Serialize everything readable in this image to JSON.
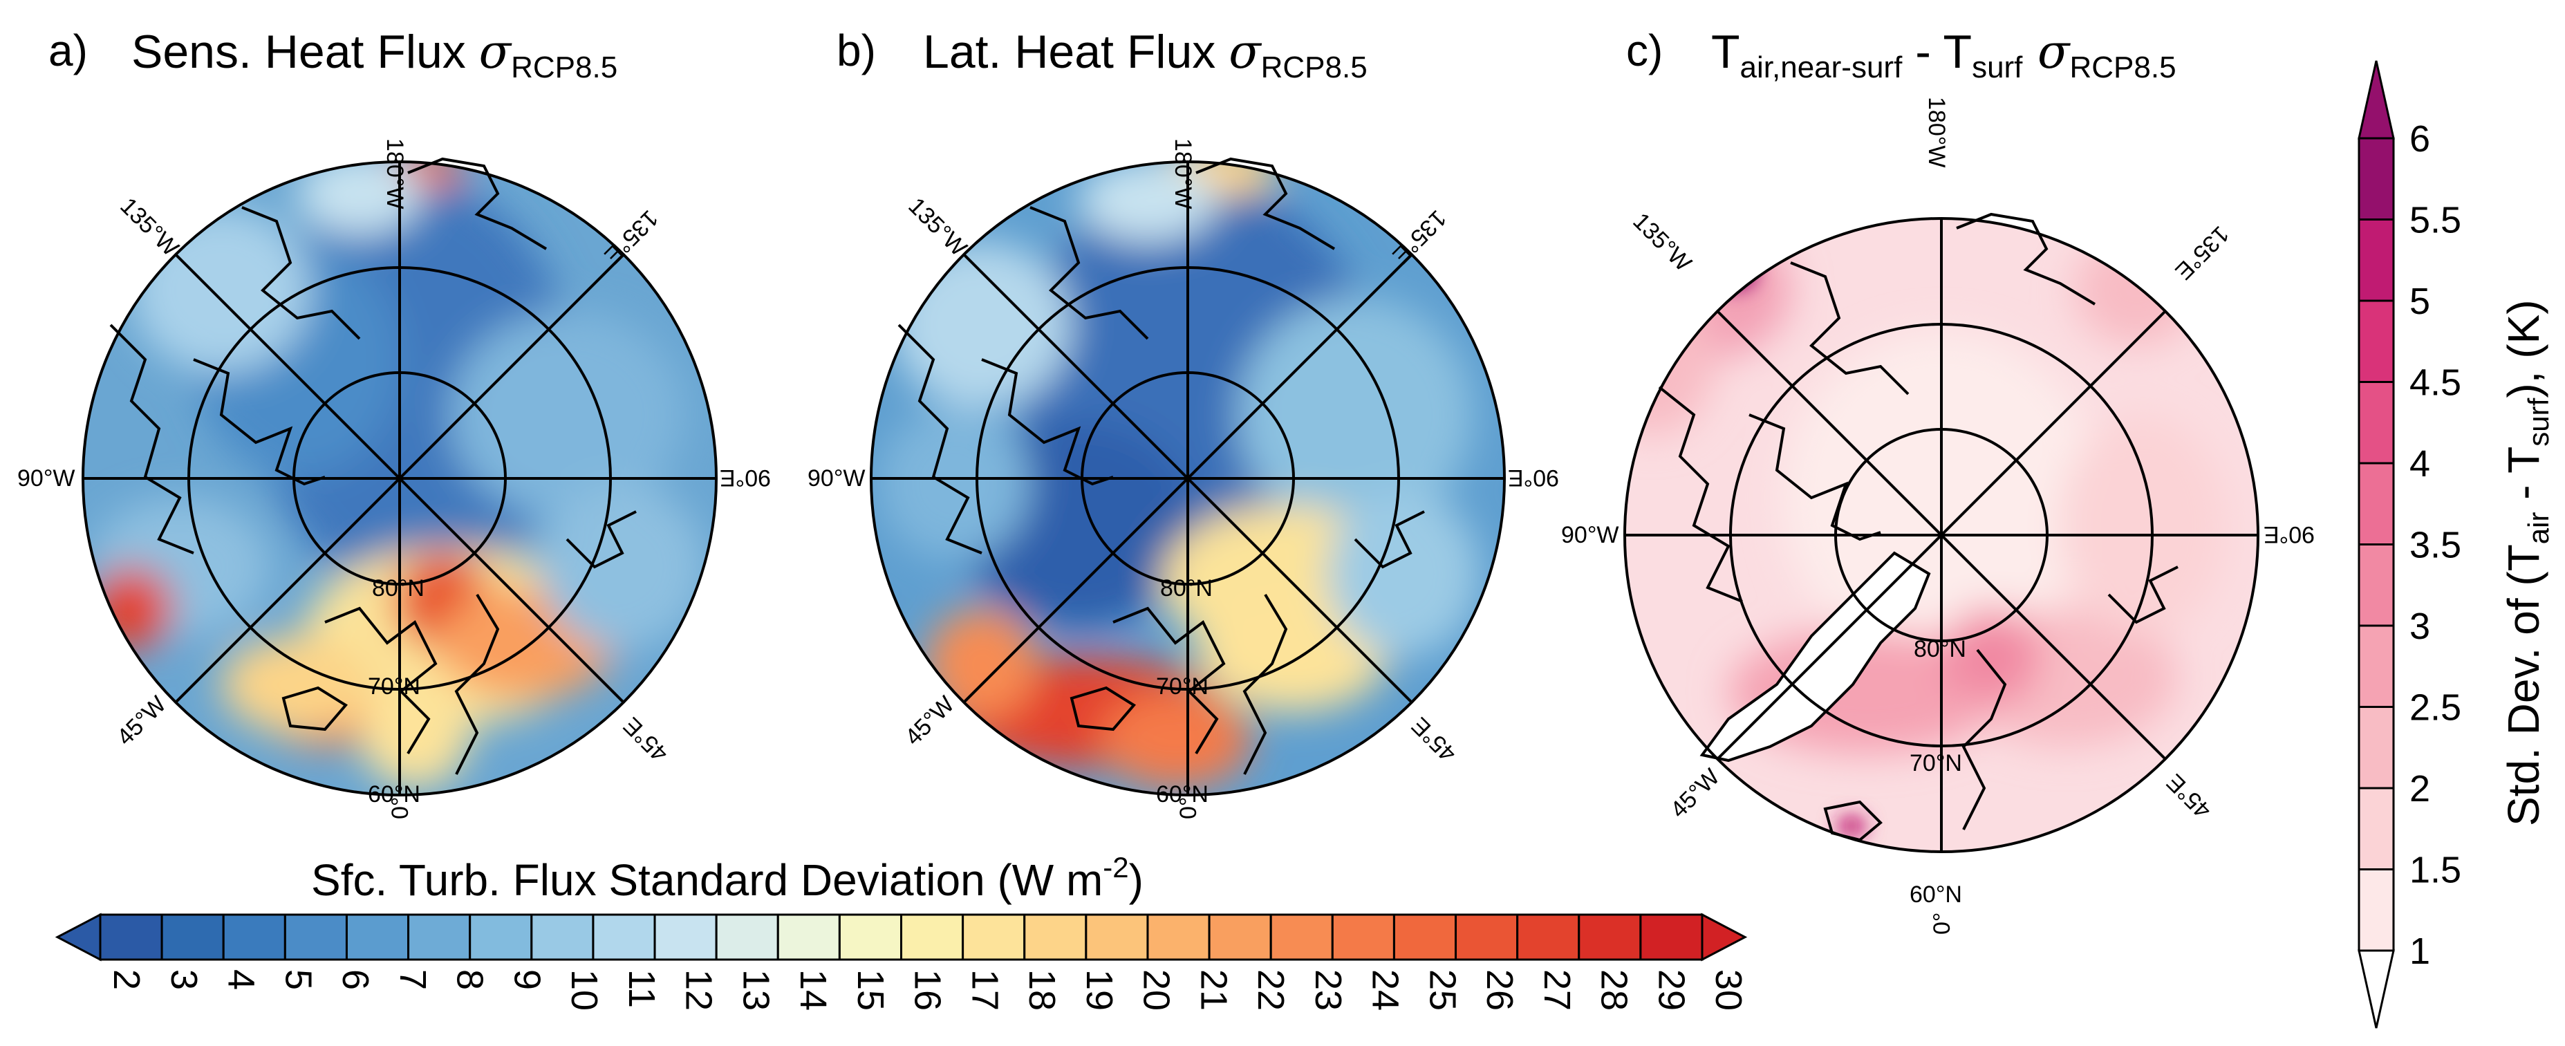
{
  "panels": [
    {
      "letter": "a)",
      "title_main": "Sens. Heat Flux ",
      "title_sigma": "σ",
      "title_sub": "RCP8.5",
      "lon_labels": {
        "top": "180°W",
        "upper_left": "135°W",
        "upper_right": "135°E",
        "left": "90°W",
        "right": "90°E",
        "lower_left": "45°W",
        "lower_right": "45°E",
        "bottom": "0°"
      },
      "lat_labels": [
        "80°N",
        "70°N",
        "60°N"
      ]
    },
    {
      "letter": "b)",
      "title_main": "Lat. Heat Flux ",
      "title_sigma": "σ",
      "title_sub": "RCP8.5",
      "lon_labels": {
        "top": "180°W",
        "upper_left": "135°W",
        "upper_right": "135°E",
        "left": "90°W",
        "right": "90°E",
        "lower_left": "45°W",
        "lower_right": "45°E",
        "bottom": "0°"
      },
      "lat_labels": [
        "80°N",
        "70°N",
        "60°N"
      ]
    },
    {
      "letter": "c)",
      "title_T1": "T",
      "title_sub1": "air,near-surf",
      "title_mid": " - T",
      "title_sub2": "surf",
      "title_sigma": " σ",
      "title_sub3": "RCP8.5",
      "lon_labels": {
        "top": "180°W",
        "upper_left": "135°W",
        "upper_right": "135°E",
        "left": "90°W",
        "right": "90°E",
        "lower_left": "45°W",
        "lower_right": "45°E",
        "bottom": "0°"
      },
      "lat_labels": [
        "80°N",
        "70°N",
        "60°N"
      ]
    }
  ],
  "flux_colorbar": {
    "title_main": "Sfc. Turb. Flux Standard Deviation (W m",
    "title_sup": "-2",
    "title_end": ")",
    "ticks": [
      "2",
      "3",
      "4",
      "5",
      "6",
      "7",
      "8",
      "9",
      "10",
      "11",
      "12",
      "13",
      "14",
      "15",
      "16",
      "17",
      "18",
      "19",
      "20",
      "21",
      "22",
      "23",
      "24",
      "25",
      "26",
      "27",
      "28",
      "29",
      "30"
    ],
    "colors": [
      "#2b5aa6",
      "#2e6bb0",
      "#3a7bbd",
      "#4b8cc7",
      "#5b9ccf",
      "#6eabd6",
      "#82bbde",
      "#99c9e5",
      "#b1d7ec",
      "#c8e3f0",
      "#dcede9",
      "#ecf5dc",
      "#f6f6c4",
      "#fbefab",
      "#fde39a",
      "#fdd489",
      "#fcc47a",
      "#fbb26c",
      "#f99f5f",
      "#f78c53",
      "#f47a48",
      "#f0683d",
      "#ea5534",
      "#e3432d",
      "#db3027",
      "#d22124"
    ]
  },
  "temp_colorbar": {
    "title_main": "Std. Dev. of (T",
    "title_sub1": "air",
    "title_mid": " - T",
    "title_sub2": "surf",
    "title_end": "), (K)",
    "ticks": [
      "1",
      "1.5",
      "2",
      "2.5",
      "3",
      "3.5",
      "4",
      "4.5",
      "5",
      "5.5",
      "6"
    ],
    "colors": [
      "#fde8e8",
      "#fbd3d6",
      "#f8bcc4",
      "#f5a3b3",
      "#f189a3",
      "#ec6f95",
      "#e45186",
      "#d93379",
      "#c01b72",
      "#94106c"
    ]
  }
}
